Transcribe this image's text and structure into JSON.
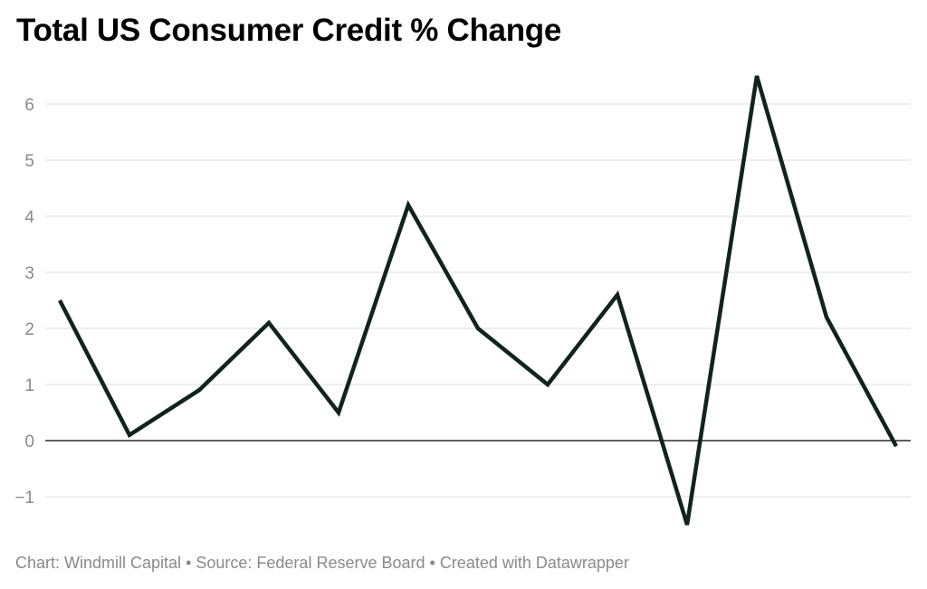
{
  "chart_data": {
    "type": "line",
    "title": "Total US Consumer Credit % Change",
    "xlabel": "",
    "ylabel": "",
    "ylim": [
      -1.5,
      6.5
    ],
    "yticks": [
      -1,
      0,
      1,
      2,
      3,
      4,
      5,
      6
    ],
    "ytick_labels": [
      "−1",
      "0",
      "1",
      "2",
      "3",
      "4",
      "5",
      "6"
    ],
    "grid": true,
    "legend": "none",
    "series": [
      {
        "values": [
          2.5,
          0.1,
          0.9,
          2.1,
          0.5,
          4.2,
          2.0,
          1.0,
          2.6,
          -1.5,
          6.5,
          2.2,
          -0.1
        ],
        "color": "#0f241c"
      }
    ]
  },
  "footer": {
    "credit": "Chart: Windmill Capital",
    "separator1": " • ",
    "source": "Source: Federal Reserve Board",
    "separator2": " • ",
    "created": "Created with Datawrapper"
  },
  "colors": {
    "line": "#0f241c",
    "grid": "#dddddd",
    "zero_line": "#000000",
    "muted_text": "#8a8a8a"
  }
}
